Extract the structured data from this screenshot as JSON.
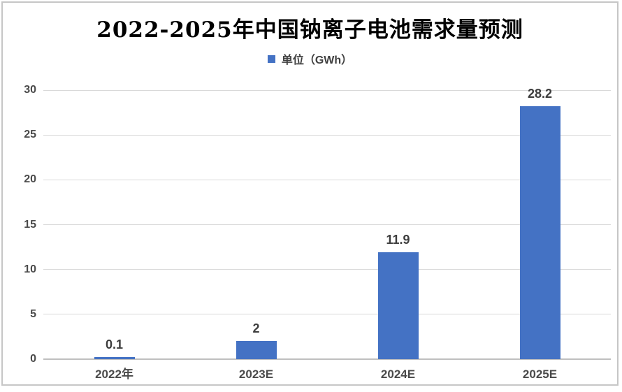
{
  "frame": {
    "background_color": "#ffffff",
    "border_color": "#c6c6c6"
  },
  "chart_data": {
    "type": "bar",
    "title": "2022-2025年中国钠离子电池需求量预测",
    "legend": {
      "label": "单位（GWh）",
      "position": "top-center",
      "swatch_color": "#4472C4"
    },
    "categories": [
      "2022年",
      "2023E",
      "2024E",
      "2025E"
    ],
    "values": [
      0.1,
      2,
      11.9,
      28.2
    ],
    "data_labels": [
      "0.1",
      "2",
      "11.9",
      "28.2"
    ],
    "xlabel": "",
    "ylabel": "",
    "ylim": [
      0,
      30
    ],
    "yticks": [
      0,
      5,
      10,
      15,
      20,
      25,
      30
    ],
    "grid": true,
    "legend_position": "top-center",
    "colors": {
      "bar": "#4472C4",
      "gridline": "#d9d9d9",
      "axis_line": "#bfbfbf",
      "tick_label": "#4a4a4a",
      "data_label": "#3d3d3d",
      "title": "#000000"
    }
  }
}
